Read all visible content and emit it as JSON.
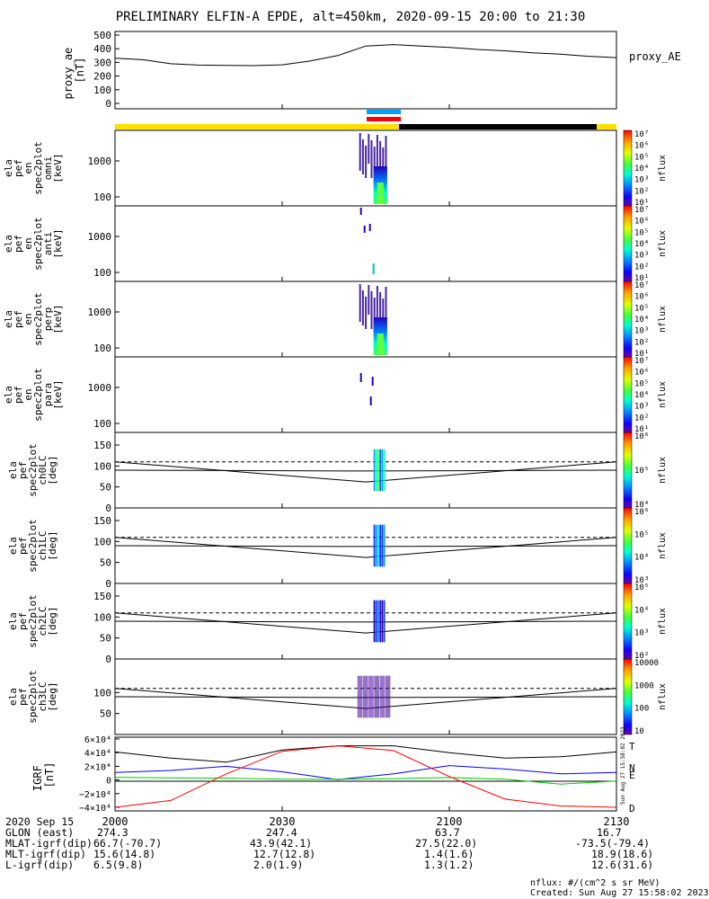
{
  "title": "PRELIMINARY ELFIN-A EPDE, alt=450km, 2020-09-15 20:00 to 21:30",
  "proxy_panel": {
    "ylabel_lines": [
      "proxy_ae",
      "[nT]"
    ],
    "legend": "proxy_AE",
    "yticks": [
      "500",
      "400",
      "300",
      "200",
      "100",
      "0"
    ]
  },
  "energy_panels": [
    {
      "ylabel_lines": [
        "ela",
        "pef",
        "en",
        "spec2plot",
        "omni",
        "[keV]"
      ],
      "yticks": [
        "1000",
        "100"
      ]
    },
    {
      "ylabel_lines": [
        "ela",
        "pef",
        "en",
        "spec2plot",
        "anti",
        "[keV]"
      ],
      "yticks": [
        "1000",
        "100"
      ]
    },
    {
      "ylabel_lines": [
        "ela",
        "pef",
        "en",
        "spec2plot",
        "perp",
        "[keV]"
      ],
      "yticks": [
        "1000",
        "100"
      ]
    },
    {
      "ylabel_lines": [
        "ela",
        "pef",
        "en",
        "spec2plot",
        "para",
        "[keV]"
      ],
      "yticks": [
        "1000",
        "100"
      ]
    }
  ],
  "angle_panels": [
    {
      "ylabel_lines": [
        "ela",
        "pef",
        "spec2plot",
        "ch0LC",
        "[deg]"
      ],
      "yticks": [
        "150",
        "100",
        "50",
        "0"
      ]
    },
    {
      "ylabel_lines": [
        "ela",
        "pef",
        "spec2plot",
        "ch1LC",
        "[deg]"
      ],
      "yticks": [
        "150",
        "100",
        "50",
        "0"
      ]
    },
    {
      "ylabel_lines": [
        "ela",
        "pef",
        "spec2plot",
        "ch2LC",
        "[deg]"
      ],
      "yticks": [
        "150",
        "100",
        "50",
        "0"
      ]
    },
    {
      "ylabel_lines": [
        "ela",
        "pef",
        "spec2plot",
        "ch3LC",
        "[deg]"
      ],
      "yticks": [
        "100",
        "50"
      ]
    }
  ],
  "colorbars": [
    {
      "label": "nflux",
      "ticks": [
        "10⁷",
        "10⁶",
        "10⁵",
        "10⁴",
        "10³",
        "10²",
        "10¹"
      ]
    },
    {
      "label": "nflux",
      "ticks": [
        "10⁷",
        "10⁶",
        "10⁵",
        "10⁴",
        "10³",
        "10²",
        "10¹"
      ]
    },
    {
      "label": "nflux",
      "ticks": [
        "10⁷",
        "10⁶",
        "10⁵",
        "10⁴",
        "10³",
        "10²",
        "10¹"
      ]
    },
    {
      "label": "nflux",
      "ticks": [
        "10⁷",
        "10⁶",
        "10⁵",
        "10⁴",
        "10³",
        "10²",
        "10¹"
      ]
    },
    {
      "label": "nflux",
      "ticks": [
        "10⁶",
        "10⁵",
        "10⁴"
      ]
    },
    {
      "label": "nflux",
      "ticks": [
        "10⁶",
        "10⁵",
        "10⁴",
        "10³"
      ]
    },
    {
      "label": "nflux",
      "ticks": [
        "10⁵",
        "10⁴",
        "10³",
        "10²"
      ]
    },
    {
      "label": "nflux",
      "ticks": [
        "10000",
        "1000",
        "100",
        "10"
      ]
    }
  ],
  "igrf_panel": {
    "ylabel_lines": [
      "IGRF",
      "[nT]"
    ],
    "yticks": [
      "6×10⁴",
      "4×10⁴",
      "2×10⁴",
      "0",
      "−2×10⁴",
      "−4×10⁴"
    ],
    "legend": [
      {
        "label": "T",
        "color": "#000000"
      },
      {
        "label": "N",
        "color": "#0000ff"
      },
      {
        "label": "E",
        "color": "#00cc00"
      },
      {
        "label": "D",
        "color": "#ff0000"
      }
    ],
    "side_stamp": "Sun Aug 27 15:58:02 2023"
  },
  "footer": {
    "date_label": "2020 Sep 15",
    "rows": [
      {
        "label": "GLON (east)",
        "values": [
          "274.3",
          "247.4",
          "63.7",
          "16.7"
        ]
      },
      {
        "label": "MLAT-igrf(dip)",
        "values": [
          "66.7(-70.7)",
          "43.9(42.1)",
          "27.5(22.0)",
          "-73.5(-79.4)"
        ]
      },
      {
        "label": "MLT-igrf(dip)",
        "values": [
          "15.6(14.8)",
          "12.7(12.8)",
          "1.4(1.6)",
          "18.9(18.6)"
        ]
      },
      {
        "label": "L-igrf(dip)",
        "values": [
          "6.5(9.8)",
          "2.0(1.9)",
          "1.3(1.2)",
          "12.6(31.6)"
        ]
      }
    ],
    "xticks": [
      "2000",
      "2030",
      "2100",
      "2130"
    ],
    "units_note": "nflux: #/(cm^2 s sr MeV)",
    "created": "Created: Sun Aug 27 15:58:02 2023"
  },
  "chart_data": {
    "type": "line",
    "xlabel": "",
    "x_range_minutes": [
      0,
      90
    ],
    "proxy_ae": {
      "name": "proxy_AE",
      "ylim": [
        0,
        500
      ],
      "x": [
        0,
        5,
        10,
        15,
        20,
        25,
        30,
        35,
        40,
        45,
        50,
        55,
        60,
        65,
        70,
        75,
        80,
        85,
        90
      ],
      "y": [
        330,
        320,
        290,
        280,
        278,
        276,
        282,
        310,
        350,
        420,
        430,
        420,
        410,
        395,
        385,
        370,
        360,
        345,
        335
      ]
    },
    "igrf": {
      "ylim": [
        -40000,
        60000
      ],
      "x": [
        0,
        10,
        20,
        30,
        40,
        50,
        60,
        70,
        80,
        90
      ],
      "series": [
        {
          "name": "T",
          "color": "#000000",
          "values": [
            41000,
            32000,
            26000,
            44000,
            50000,
            50000,
            40000,
            32000,
            34000,
            41000
          ]
        },
        {
          "name": "N",
          "color": "#0000ff",
          "values": [
            11000,
            14000,
            20000,
            12000,
            500,
            9000,
            21000,
            16000,
            9000,
            11000
          ]
        },
        {
          "name": "E",
          "color": "#00cc00",
          "values": [
            4000,
            3200,
            2800,
            1200,
            1000,
            2000,
            3500,
            1000,
            -6000,
            -1500
          ]
        },
        {
          "name": "D",
          "color": "#ff0000",
          "values": [
            -40000,
            -30000,
            9000,
            42000,
            50000,
            43000,
            5000,
            -28000,
            -38000,
            -40000
          ]
        }
      ]
    },
    "loss_cone_lines": {
      "ylim": [
        0,
        180
      ],
      "x": [
        0,
        45,
        90
      ],
      "solid_upper": [
        110,
        62,
        110
      ],
      "solid_lower": [
        90,
        88,
        90
      ],
      "dashed": [
        110,
        110,
        110
      ]
    },
    "event_window_minutes": [
      43.5,
      49.5
    ],
    "colorscale": "rainbow"
  }
}
